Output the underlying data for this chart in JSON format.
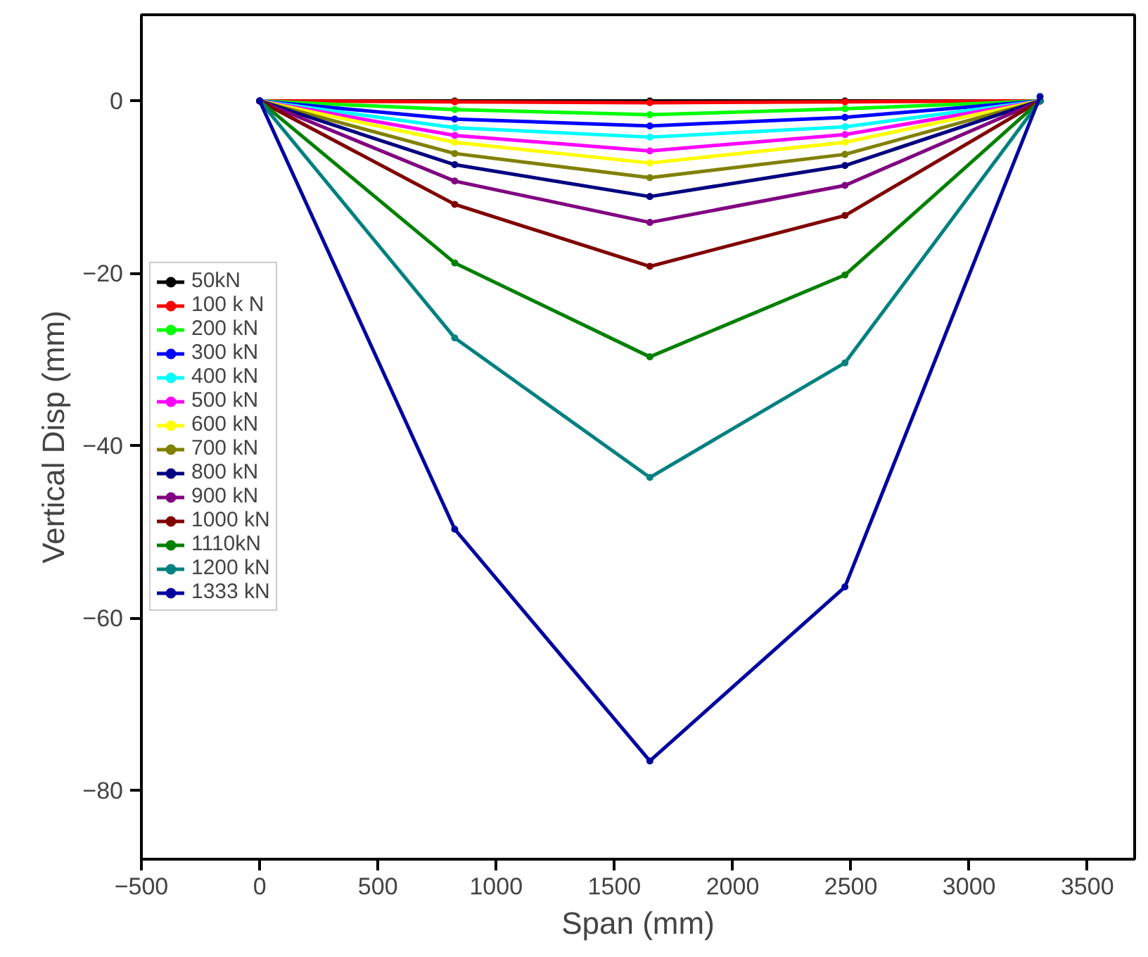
{
  "chart_data": {
    "type": "line",
    "xlabel": "Span (mm)",
    "ylabel": "Vertical Disp (mm)",
    "x": [
      0,
      825,
      1650,
      2475,
      3300
    ],
    "xlim": [
      -500,
      3700
    ],
    "ylim": [
      -88,
      10
    ],
    "xticks": [
      -500,
      0,
      500,
      1000,
      1500,
      2000,
      2500,
      3000,
      3500
    ],
    "yticks": [
      -80,
      -60,
      -40,
      -20,
      0
    ],
    "grid": false,
    "legend": "left",
    "marker": "circle",
    "line_style": "solid",
    "series": [
      {
        "name": "50kN",
        "color": "#000000",
        "values": [
          0,
          0,
          0,
          0,
          0
        ]
      },
      {
        "name": "100 k N",
        "color": "#ff0000",
        "values": [
          0,
          -0.1,
          -0.2,
          -0.1,
          0
        ]
      },
      {
        "name": "200 kN",
        "color": "#00ff00",
        "values": [
          0,
          -1.0,
          -1.6,
          -0.9,
          0
        ]
      },
      {
        "name": "300 kN",
        "color": "#0000ff",
        "values": [
          0,
          -2.1,
          -2.9,
          -1.9,
          0
        ]
      },
      {
        "name": "400 kN",
        "color": "#00ffff",
        "values": [
          0,
          -3.1,
          -4.2,
          -3.0,
          0
        ]
      },
      {
        "name": "500 kN",
        "color": "#ff00ff",
        "values": [
          0,
          -4.0,
          -5.8,
          -3.9,
          0
        ]
      },
      {
        "name": "600 kN",
        "color": "#ffff00",
        "values": [
          0,
          -4.8,
          -7.2,
          -4.8,
          0
        ]
      },
      {
        "name": "700 kN",
        "color": "#808000",
        "values": [
          0,
          -6.1,
          -8.9,
          -6.2,
          0
        ]
      },
      {
        "name": "800 kN",
        "color": "#000080",
        "values": [
          0,
          -7.4,
          -11.1,
          -7.5,
          0
        ]
      },
      {
        "name": "900 kN",
        "color": "#800080",
        "values": [
          0,
          -9.3,
          -14.1,
          -9.8,
          0
        ]
      },
      {
        "name": "1000 kN",
        "color": "#800000",
        "values": [
          0,
          -12.0,
          -19.2,
          -13.3,
          0
        ]
      },
      {
        "name": "1110kN",
        "color": "#008000",
        "values": [
          0,
          -18.8,
          -29.7,
          -20.2,
          0
        ]
      },
      {
        "name": "1200 kN",
        "color": "#008080",
        "values": [
          0,
          -27.5,
          -43.7,
          -30.4,
          0
        ]
      },
      {
        "name": "1333 kN",
        "color": "#0000a0",
        "values": [
          0,
          -49.7,
          -76.6,
          -56.4,
          0.5
        ]
      }
    ]
  }
}
